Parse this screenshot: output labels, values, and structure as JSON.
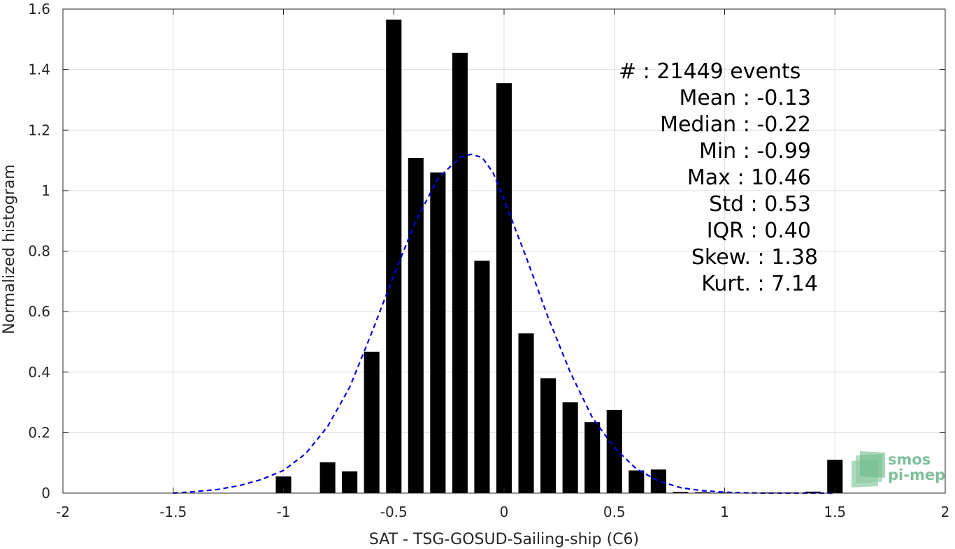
{
  "chart_data": {
    "type": "bar",
    "title": "",
    "xlabel": "SAT - TSG-GOSUD-Sailing-ship (C6)",
    "ylabel": "Normalized histogram",
    "xlim": [
      -2,
      2
    ],
    "ylim": [
      0,
      1.6
    ],
    "grid": true,
    "xticks": [
      -2,
      -1.5,
      -1,
      -0.5,
      0,
      0.5,
      1,
      1.5,
      2
    ],
    "xtick_labels": [
      "-2",
      "-1.5",
      "-1",
      "-0.5",
      "0",
      "0.5",
      "1",
      "1.5",
      "2"
    ],
    "yticks": [
      0,
      0.2,
      0.4,
      0.6,
      0.8,
      1,
      1.2,
      1.4,
      1.6
    ],
    "ytick_labels": [
      "0",
      "0.2",
      "0.4",
      "0.6",
      "0.8",
      "1",
      "1.2",
      "1.4",
      "1.6"
    ],
    "bar_width": 0.07,
    "bar_color": "#000000",
    "bars": {
      "x": [
        -1.0,
        -0.8,
        -0.7,
        -0.6,
        -0.5,
        -0.4,
        -0.3,
        -0.2,
        -0.1,
        0.0,
        0.1,
        0.2,
        0.3,
        0.4,
        0.5,
        0.6,
        0.7,
        0.8,
        0.9,
        1.0,
        1.1,
        1.2,
        1.3,
        1.4,
        1.5
      ],
      "values": [
        0.055,
        0.102,
        0.072,
        0.467,
        1.565,
        1.108,
        1.06,
        1.455,
        0.768,
        1.355,
        0.528,
        0.38,
        0.3,
        0.235,
        0.275,
        0.075,
        0.078,
        0.004,
        0.003,
        0.002,
        0.0,
        0.002,
        0.002,
        0.005,
        0.11
      ]
    },
    "fit_curve": {
      "style": "dashed",
      "color": "#0000e6",
      "x": [
        -1.5,
        -1.4,
        -1.3,
        -1.2,
        -1.1,
        -1.0,
        -0.9,
        -0.8,
        -0.7,
        -0.6,
        -0.5,
        -0.4,
        -0.3,
        -0.2,
        -0.15,
        -0.1,
        -0.05,
        0.0,
        0.1,
        0.2,
        0.3,
        0.4,
        0.5,
        0.6,
        0.7,
        0.8,
        0.9,
        1.0,
        1.1,
        1.2,
        1.3,
        1.4,
        1.5
      ],
      "y": [
        0.0,
        0.005,
        0.012,
        0.025,
        0.045,
        0.075,
        0.13,
        0.22,
        0.35,
        0.53,
        0.72,
        0.9,
        1.04,
        1.11,
        1.12,
        1.11,
        1.06,
        0.97,
        0.78,
        0.58,
        0.4,
        0.25,
        0.15,
        0.08,
        0.04,
        0.018,
        0.008,
        0.003,
        0.001,
        0.0,
        0.0,
        0.0,
        0.0
      ]
    },
    "stats": [
      "#  : 21449 events",
      "Mean : -0.13",
      "Median : -0.22",
      "Min : -0.99",
      "Max : 10.46",
      "Std : 0.53",
      "IQR : 0.40",
      "Skew. : 1.38",
      "Kurt. : 7.14"
    ]
  },
  "logo": {
    "line1": "smos",
    "line2": "pi-mep",
    "color": "#7fbf9a"
  }
}
